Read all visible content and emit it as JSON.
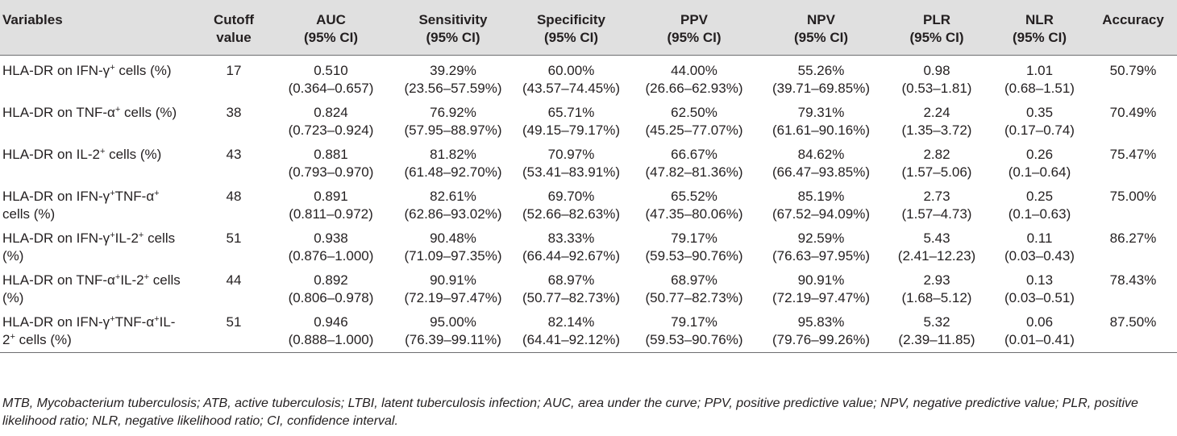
{
  "headers": {
    "variables": "Variables",
    "cutoff": [
      "Cutoff",
      "value"
    ],
    "auc": [
      "AUC",
      "(95% CI)"
    ],
    "sensitivity": [
      "Sensitivity",
      "(95% CI)"
    ],
    "specificity": [
      "Specificity",
      "(95% CI)"
    ],
    "ppv": [
      "PPV",
      "(95% CI)"
    ],
    "npv": [
      "NPV",
      "(95% CI)"
    ],
    "plr": [
      "PLR",
      "(95% CI)"
    ],
    "nlr": [
      "NLR",
      "(95% CI)"
    ],
    "accuracy": "Accuracy"
  },
  "rows": [
    {
      "variable": [
        "HLA-DR on IFN-γ",
        "+",
        " cells (%)"
      ],
      "cutoff": "17",
      "auc": [
        "0.510",
        "(0.364–0.657)"
      ],
      "sensitivity": [
        "39.29%",
        "(23.56–57.59%)"
      ],
      "specificity": [
        "60.00%",
        "(43.57–74.45%)"
      ],
      "ppv": [
        "44.00%",
        "(26.66–62.93%)"
      ],
      "npv": [
        "55.26%",
        "(39.71–69.85%)"
      ],
      "plr": [
        "0.98",
        "(0.53–1.81)"
      ],
      "nlr": [
        "1.01",
        "(0.68–1.51)"
      ],
      "accuracy": "50.79%"
    },
    {
      "variable": [
        "HLA-DR on TNF-α",
        "+",
        " cells (%)"
      ],
      "cutoff": "38",
      "auc": [
        "0.824",
        "(0.723–0.924)"
      ],
      "sensitivity": [
        "76.92%",
        "(57.95–88.97%)"
      ],
      "specificity": [
        "65.71%",
        "(49.15–79.17%)"
      ],
      "ppv": [
        "62.50%",
        "(45.25–77.07%)"
      ],
      "npv": [
        "79.31%",
        "(61.61–90.16%)"
      ],
      "plr": [
        "2.24",
        "(1.35–3.72)"
      ],
      "nlr": [
        "0.35",
        "(0.17–0.74)"
      ],
      "accuracy": "70.49%"
    },
    {
      "variable": [
        "HLA-DR on IL-2",
        "+",
        " cells (%)"
      ],
      "cutoff": "43",
      "auc": [
        "0.881",
        "(0.793–0.970)"
      ],
      "sensitivity": [
        "81.82%",
        "(61.48–92.70%)"
      ],
      "specificity": [
        "70.97%",
        "(53.41–83.91%)"
      ],
      "ppv": [
        "66.67%",
        "(47.82–81.36%)"
      ],
      "npv": [
        "84.62%",
        "(66.47–93.85%)"
      ],
      "plr": [
        "2.82",
        "(1.57–5.06)"
      ],
      "nlr": [
        "0.26",
        "(0.1–0.64)"
      ],
      "accuracy": "75.47%"
    },
    {
      "variable": [
        "HLA-DR on IFN-γ",
        "+",
        "TNF-α",
        "+",
        "",
        "cells (%)"
      ],
      "cutoff": "48",
      "auc": [
        "0.891",
        "(0.811–0.972)"
      ],
      "sensitivity": [
        "82.61%",
        "(62.86–93.02%)"
      ],
      "specificity": [
        "69.70%",
        "(52.66–82.63%)"
      ],
      "ppv": [
        "65.52%",
        "(47.35–80.06%)"
      ],
      "npv": [
        "85.19%",
        "(67.52–94.09%)"
      ],
      "plr": [
        "2.73",
        "(1.57–4.73)"
      ],
      "nlr": [
        "0.25",
        "(0.1–0.63)"
      ],
      "accuracy": "75.00%"
    },
    {
      "variable": [
        "HLA-DR on IFN-γ",
        "+",
        "IL-2",
        "+",
        " cells",
        "(%)"
      ],
      "cutoff": "51",
      "auc": [
        "0.938",
        "(0.876–1.000)"
      ],
      "sensitivity": [
        "90.48%",
        "(71.09–97.35%)"
      ],
      "specificity": [
        "83.33%",
        "(66.44–92.67%)"
      ],
      "ppv": [
        "79.17%",
        "(59.53–90.76%)"
      ],
      "npv": [
        "92.59%",
        "(76.63–97.95%)"
      ],
      "plr": [
        "5.43",
        "(2.41–12.23)"
      ],
      "nlr": [
        "0.11",
        "(0.03–0.43)"
      ],
      "accuracy": "86.27%"
    },
    {
      "variable": [
        "HLA-DR on TNF-α",
        "+",
        "IL-2",
        "+",
        " cells",
        "(%)"
      ],
      "cutoff": "44",
      "auc": [
        "0.892",
        "(0.806–0.978)"
      ],
      "sensitivity": [
        "90.91%",
        "(72.19–97.47%)"
      ],
      "specificity": [
        "68.97%",
        "(50.77–82.73%)"
      ],
      "ppv": [
        "68.97%",
        "(50.77–82.73%)"
      ],
      "npv": [
        "90.91%",
        "(72.19–97.47%)"
      ],
      "plr": [
        "2.93",
        "(1.68–5.12)"
      ],
      "nlr": [
        "0.13",
        "(0.03–0.51)"
      ],
      "accuracy": "78.43%"
    },
    {
      "variable": [
        "HLA-DR on IFN-γ",
        "+",
        "TNF-α",
        "+",
        "IL-",
        "2",
        "+",
        " cells (%)"
      ],
      "cutoff": "51",
      "auc": [
        "0.946",
        "(0.888–1.000)"
      ],
      "sensitivity": [
        "95.00%",
        "(76.39–99.11%)"
      ],
      "specificity": [
        "82.14%",
        "(64.41–92.12%)"
      ],
      "ppv": [
        "79.17%",
        "(59.53–90.76%)"
      ],
      "npv": [
        "95.83%",
        "(79.76–99.26%)"
      ],
      "plr": [
        "5.32",
        "(2.39–11.85)"
      ],
      "nlr": [
        "0.06",
        "(0.01–0.41)"
      ],
      "accuracy": "87.50%"
    }
  ],
  "footnote": "MTB, Mycobacterium tuberculosis; ATB, active tuberculosis; LTBI, latent tuberculosis infection; AUC, area under the curve; PPV, positive predictive value; NPV, negative predictive value; PLR, positive likelihood ratio; NLR, negative likelihood ratio; CI, confidence interval."
}
